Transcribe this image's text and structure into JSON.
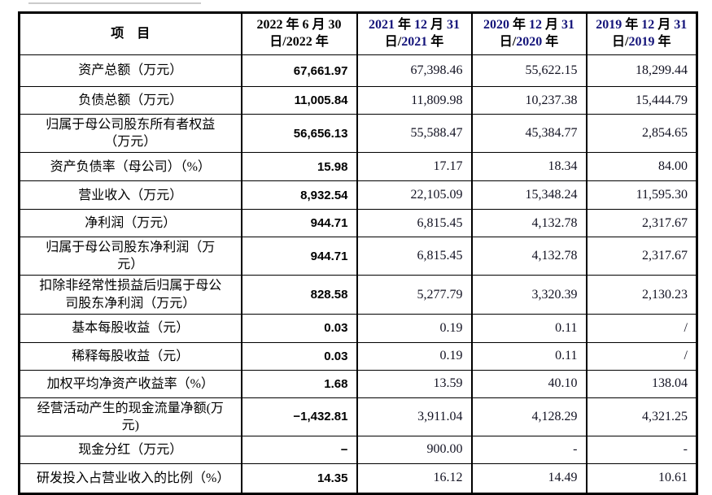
{
  "page": {
    "background": "#ffffff",
    "top_rule_color": "#cbcbcb"
  },
  "colors": {
    "border": "#000000",
    "header_digit_navy": "#14147a",
    "serif_value_ink": "#121222",
    "bold_value_ink": "#000000"
  },
  "table": {
    "item_header": "项　目",
    "columns": [
      {
        "line1": "2022 年 6 月 30",
        "line2": "日/2022 年",
        "accent_digits": false
      },
      {
        "line1": "2021 年 12 月 31",
        "line2": "日/2021 年",
        "accent_digits": true
      },
      {
        "line1": "2020 年 12 月 31",
        "line2": "日/2020 年",
        "accent_digits": true
      },
      {
        "line1": "2019 年 12 月 31",
        "line2": "日/2019 年",
        "accent_digits": true
      }
    ],
    "rows": [
      {
        "label": "资产总额（万元）",
        "values": [
          "67,661.97",
          "67,398.46",
          "55,622.15",
          "18,299.44"
        ]
      },
      {
        "label": "负债总额（万元）",
        "values": [
          "11,005.84",
          "11,809.98",
          "10,237.38",
          "15,444.79"
        ]
      },
      {
        "label": "归属于母公司股东所有者权益（万元）",
        "values": [
          "56,656.13",
          "55,588.47",
          "45,384.77",
          "2,854.65"
        ]
      },
      {
        "label": "资产负债率（母公司）（%）",
        "values": [
          "15.98",
          "17.17",
          "18.34",
          "84.00"
        ]
      },
      {
        "label": "营业收入（万元）",
        "values": [
          "8,932.54",
          "22,105.09",
          "15,348.24",
          "11,595.30"
        ]
      },
      {
        "label": "净利润（万元）",
        "values": [
          "944.71",
          "6,815.45",
          "4,132.78",
          "2,317.67"
        ]
      },
      {
        "label": "归属于母公司股东净利润（万元）",
        "values": [
          "944.71",
          "6,815.45",
          "4,132.78",
          "2,317.67"
        ]
      },
      {
        "label": "扣除非经常性损益后归属于母公司股东净利润（万元）",
        "values": [
          "828.58",
          "5,277.79",
          "3,320.39",
          "2,130.23"
        ]
      },
      {
        "label": "基本每股收益（元）",
        "values": [
          "0.03",
          "0.19",
          "0.11",
          "/"
        ]
      },
      {
        "label": "稀释每股收益（元）",
        "values": [
          "0.03",
          "0.19",
          "0.11",
          "/"
        ]
      },
      {
        "label": "加权平均净资产收益率（%）",
        "values": [
          "1.68",
          "13.59",
          "40.10",
          "138.04"
        ]
      },
      {
        "label": "经营活动产生的现金流量净额(万元)",
        "values": [
          "−1,432.81",
          "3,911.04",
          "4,128.29",
          "4,321.25"
        ]
      },
      {
        "label": "现金分红（万元）",
        "values": [
          "−",
          "900.00",
          "-",
          "-"
        ]
      },
      {
        "label": "研发投入占营业收入的比例（%）",
        "values": [
          "14.35",
          "16.12",
          "14.49",
          "10.61"
        ]
      }
    ]
  }
}
